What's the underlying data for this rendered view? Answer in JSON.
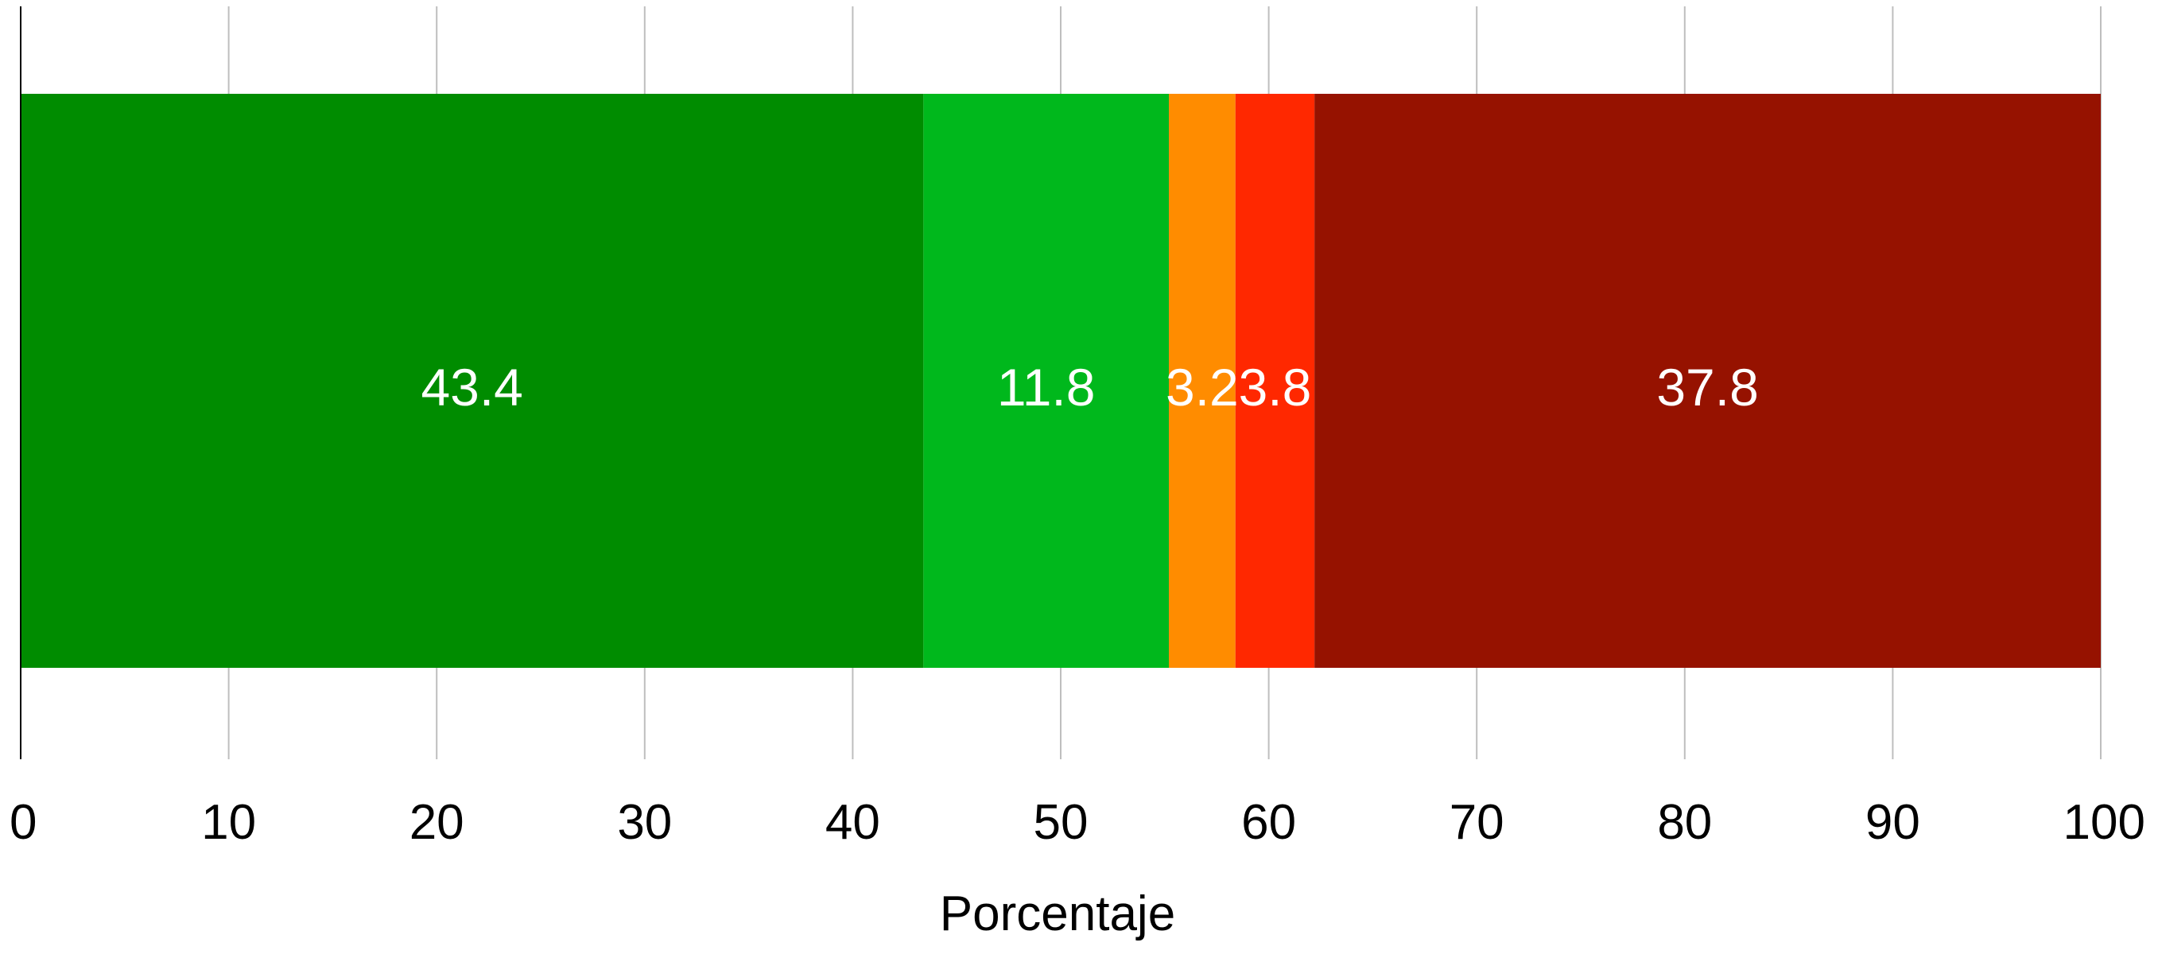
{
  "chart_data": {
    "type": "bar",
    "orientation": "horizontal",
    "stacked": true,
    "title": "",
    "xlabel": "Porcentaje",
    "ylabel": "",
    "xlim": [
      0,
      100
    ],
    "x_ticks": [
      "0",
      "10",
      "20",
      "30",
      "40",
      "50",
      "60",
      "70",
      "80",
      "90",
      "100"
    ],
    "grid": "vertical",
    "legend": "none",
    "series": [
      {
        "value": 43.4,
        "label": "43.4",
        "color": "#008C00"
      },
      {
        "value": 11.8,
        "label": "11.8",
        "color": "#00B81C"
      },
      {
        "value": 3.2,
        "label": "3.2",
        "color": "#FF8C00"
      },
      {
        "value": 3.8,
        "label": "3.8",
        "color": "#FF2800"
      },
      {
        "value": 37.8,
        "label": "37.8",
        "color": "#961200"
      }
    ]
  },
  "colors": {
    "grid": "#BEBEBE",
    "axis": "#000000",
    "tick_text": "#000000",
    "value_label": "#FFFFFF"
  }
}
